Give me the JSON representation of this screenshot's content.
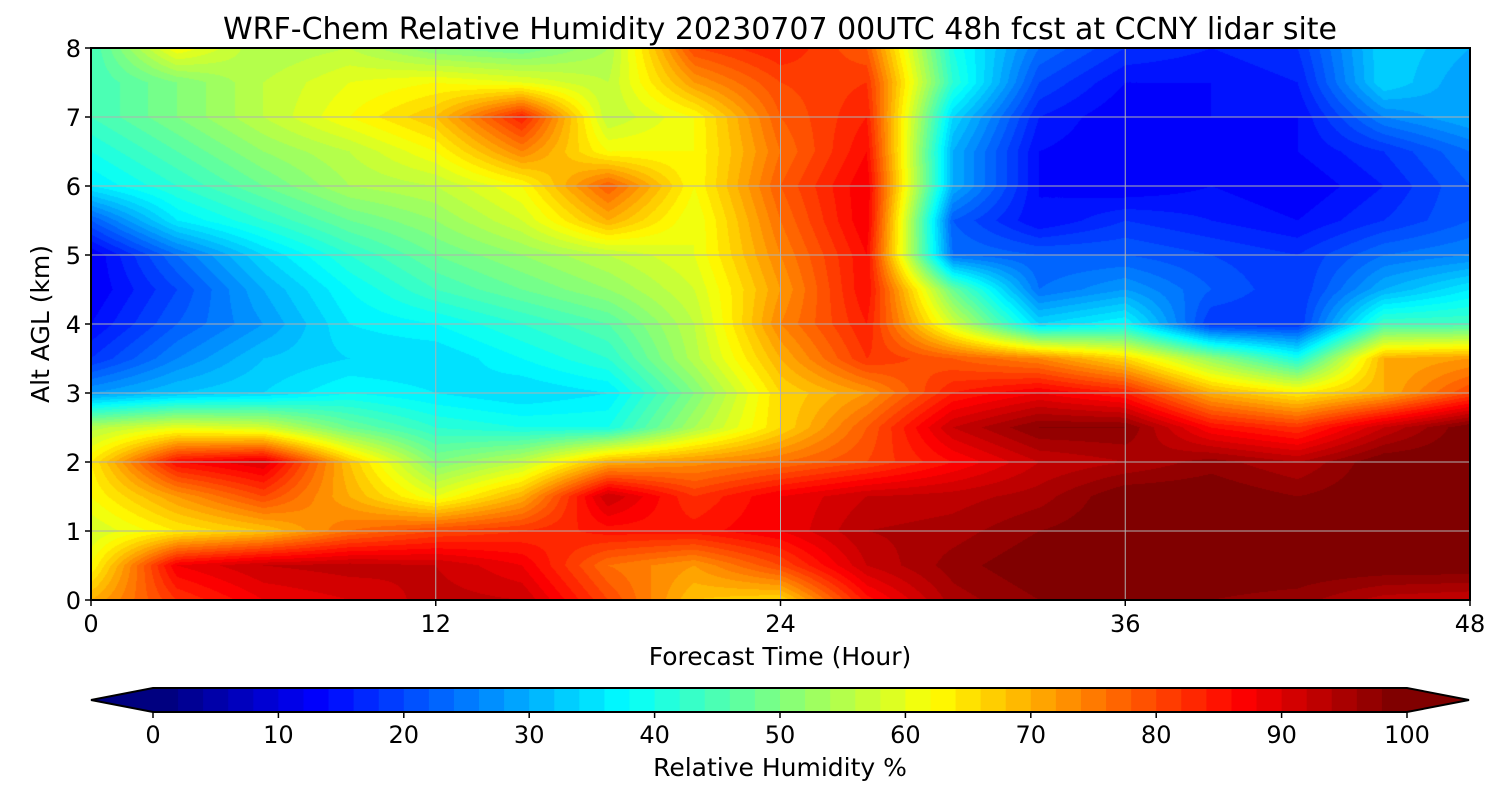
{
  "chart_data": {
    "type": "heatmap",
    "title": "WRF-Chem Relative Humidity 20230707 00UTC 48h fcst at CCNY lidar site",
    "xlabel": "Forecast Time (Hour)",
    "ylabel": "Alt AGL (km)",
    "xlim": [
      0,
      48
    ],
    "ylim": [
      0,
      8
    ],
    "x_ticks": [
      "0",
      "12",
      "24",
      "36",
      "48"
    ],
    "y_ticks": [
      "0",
      "1",
      "2",
      "3",
      "4",
      "5",
      "6",
      "7",
      "8"
    ],
    "grid": true,
    "colormap": "jet",
    "colorbar": {
      "label": "Relative Humidity %",
      "range": [
        0,
        100
      ],
      "ticks": [
        "0",
        "10",
        "20",
        "30",
        "40",
        "50",
        "60",
        "70",
        "80",
        "90",
        "100"
      ],
      "extend": "both",
      "orientation": "horizontal"
    },
    "x": [
      0,
      3,
      6,
      9,
      12,
      15,
      18,
      21,
      24,
      27,
      30,
      33,
      36,
      39,
      42,
      45,
      48
    ],
    "y": [
      0,
      0.5,
      1,
      1.5,
      2,
      2.5,
      3,
      3.5,
      4,
      4.5,
      5,
      5.5,
      6,
      6.5,
      7,
      7.5,
      8
    ],
    "z": [
      [
        70,
        82,
        88,
        90,
        93,
        92,
        80,
        68,
        66,
        85,
        95,
        98,
        99,
        98,
        97,
        93,
        92
      ],
      [
        62,
        88,
        92,
        93,
        92,
        88,
        76,
        72,
        80,
        92,
        97,
        100,
        100,
        100,
        100,
        100,
        100
      ],
      [
        58,
        64,
        68,
        76,
        80,
        82,
        85,
        85,
        88,
        94,
        95,
        98,
        100,
        100,
        100,
        100,
        100
      ],
      [
        62,
        72,
        80,
        70,
        60,
        70,
        92,
        82,
        88,
        92,
        93,
        95,
        100,
        100,
        98,
        100,
        100
      ],
      [
        64,
        86,
        90,
        68,
        50,
        56,
        70,
        73,
        76,
        80,
        86,
        92,
        94,
        97,
        94,
        100,
        100
      ],
      [
        55,
        60,
        58,
        48,
        42,
        40,
        40,
        54,
        66,
        78,
        92,
        98,
        98,
        86,
        82,
        92,
        100
      ],
      [
        28,
        32,
        34,
        38,
        36,
        34,
        36,
        50,
        66,
        72,
        84,
        88,
        84,
        70,
        64,
        70,
        80
      ],
      [
        18,
        26,
        32,
        34,
        34,
        38,
        42,
        55,
        70,
        82,
        78,
        74,
        66,
        52,
        40,
        70,
        72
      ],
      [
        14,
        22,
        28,
        36,
        38,
        42,
        46,
        56,
        74,
        84,
        58,
        34,
        38,
        18,
        18,
        44,
        44
      ],
      [
        12,
        20,
        30,
        38,
        44,
        48,
        52,
        58,
        72,
        86,
        48,
        24,
        28,
        22,
        18,
        30,
        36
      ],
      [
        12,
        24,
        34,
        42,
        48,
        52,
        56,
        60,
        74,
        86,
        24,
        22,
        22,
        20,
        18,
        24,
        26
      ],
      [
        22,
        36,
        42,
        48,
        52,
        58,
        70,
        60,
        76,
        88,
        22,
        14,
        18,
        16,
        14,
        18,
        22
      ],
      [
        36,
        42,
        48,
        54,
        56,
        62,
        78,
        62,
        78,
        88,
        30,
        14,
        12,
        14,
        12,
        16,
        22
      ],
      [
        40,
        46,
        52,
        56,
        62,
        74,
        62,
        62,
        76,
        86,
        30,
        14,
        12,
        12,
        14,
        18,
        24
      ],
      [
        44,
        50,
        56,
        62,
        68,
        84,
        56,
        62,
        78,
        84,
        34,
        16,
        12,
        14,
        14,
        26,
        30
      ],
      [
        44,
        50,
        56,
        60,
        62,
        60,
        56,
        72,
        80,
        82,
        42,
        20,
        14,
        14,
        16,
        34,
        28
      ],
      [
        44,
        62,
        54,
        56,
        50,
        48,
        54,
        80,
        84,
        78,
        40,
        24,
        18,
        16,
        18,
        34,
        30
      ]
    ]
  }
}
